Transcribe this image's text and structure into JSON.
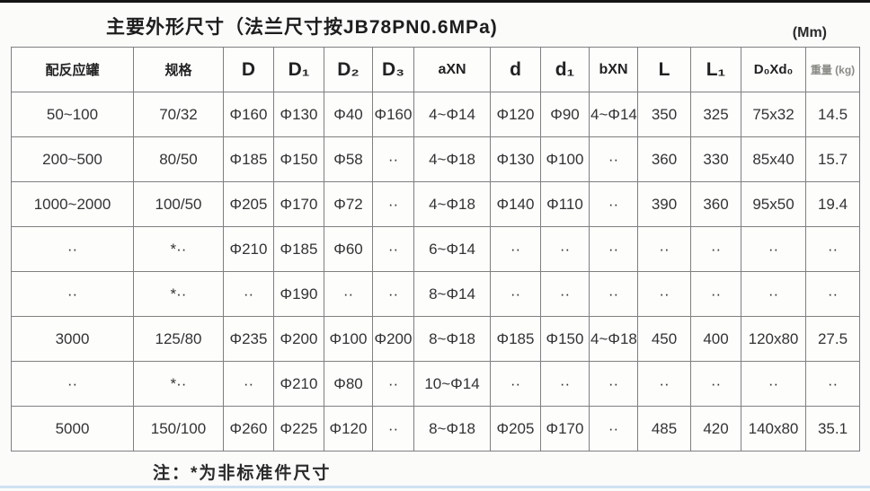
{
  "title": "主要外形尺寸（法兰尺寸按JB78PN0.6MPa)",
  "unit_label": "(Mm)",
  "note": "注：*为非标准件尺寸",
  "table": {
    "columns": [
      "配反应罐",
      "规格",
      "D",
      "D₁",
      "D₂",
      "D₃",
      "aXN",
      "d",
      "d₁",
      "bXN",
      "L",
      "L₁",
      "D₀Xd₀",
      "重量 (kg)"
    ],
    "rows": [
      [
        "50~100",
        "70/32",
        "Φ160",
        "Φ130",
        "Φ40",
        "Φ160",
        "4~Φ14",
        "Φ120",
        "Φ90",
        "4~Φ14",
        "350",
        "325",
        "75x32",
        "14.5"
      ],
      [
        "200~500",
        "80/50",
        "Φ185",
        "Φ150",
        "Φ58",
        "··",
        "4~Φ18",
        "Φ130",
        "Φ100",
        "··",
        "360",
        "330",
        "85x40",
        "15.7"
      ],
      [
        "1000~2000",
        "100/50",
        "Φ205",
        "Φ170",
        "Φ72",
        "··",
        "4~Φ18",
        "Φ140",
        "Φ110",
        "··",
        "390",
        "360",
        "95x50",
        "19.4"
      ],
      [
        "··",
        "*··",
        "Φ210",
        "Φ185",
        "Φ60",
        "··",
        "6~Φ14",
        "··",
        "··",
        "··",
        "··",
        "··",
        "··",
        "··"
      ],
      [
        "··",
        "*··",
        "··",
        "Φ190",
        "··",
        "··",
        "8~Φ14",
        "··",
        "··",
        "··",
        "··",
        "··",
        "··",
        "··"
      ],
      [
        "3000",
        "125/80",
        "Φ235",
        "Φ200",
        "Φ100",
        "Φ200",
        "8~Φ18",
        "Φ185",
        "Φ150",
        "4~Φ18",
        "450",
        "400",
        "120x80",
        "27.5"
      ],
      [
        "··",
        "*··",
        "··",
        "Φ210",
        "Φ80",
        "··",
        "10~Φ14",
        "··",
        "··",
        "··",
        "··",
        "··",
        "··",
        "··"
      ],
      [
        "5000",
        "150/100",
        "Φ260",
        "Φ225",
        "Φ120",
        "··",
        "8~Φ18",
        "Φ205",
        "Φ170",
        "··",
        "485",
        "420",
        "140x80",
        "35.1"
      ]
    ]
  }
}
